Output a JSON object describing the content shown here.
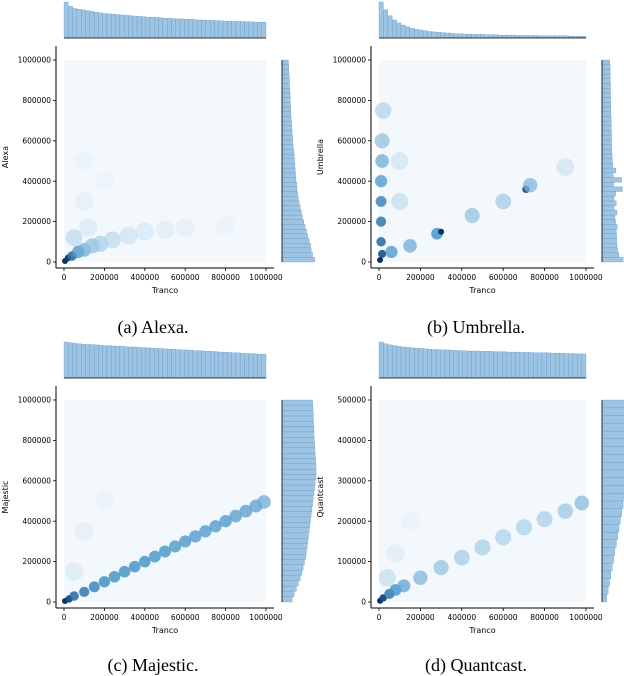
{
  "colors": {
    "accent": "#4c8ec9",
    "hist_fill": "#9ec4e3",
    "hist_edge": "#5b8fc0",
    "axis": "#000000"
  },
  "chart_data": [
    {
      "type": "heatmap",
      "subtype": "hexbin-jointplot",
      "caption": "(a) Alexa.",
      "xlabel": "Tranco",
      "ylabel": "Alexa",
      "xlim": [
        0,
        1000000
      ],
      "ylim": [
        0,
        1000000
      ],
      "xticks": [
        0,
        200000,
        400000,
        600000,
        800000,
        1000000
      ],
      "xtick_labels": [
        "0",
        "200000",
        "400000",
        "600000",
        "800000",
        "1000000"
      ],
      "yticks": [
        0,
        200000,
        400000,
        600000,
        800000,
        1000000
      ],
      "ytick_labels": [
        "0",
        "200000",
        "400000",
        "600000",
        "800000",
        "1000000"
      ],
      "density_points": [
        [
          5000,
          5000,
          1.0
        ],
        [
          20000,
          20000,
          0.95
        ],
        [
          40000,
          30000,
          0.75
        ],
        [
          70000,
          50000,
          0.55
        ],
        [
          100000,
          60000,
          0.45
        ],
        [
          140000,
          80000,
          0.35
        ],
        [
          180000,
          90000,
          0.28
        ],
        [
          240000,
          110000,
          0.22
        ],
        [
          320000,
          130000,
          0.16
        ],
        [
          400000,
          150000,
          0.13
        ],
        [
          500000,
          160000,
          0.1
        ],
        [
          600000,
          170000,
          0.08
        ],
        [
          800000,
          180000,
          0.06
        ],
        [
          50000,
          120000,
          0.22
        ],
        [
          120000,
          170000,
          0.12
        ],
        [
          100000,
          300000,
          0.08
        ],
        [
          100000,
          500000,
          0.06
        ],
        [
          200000,
          400000,
          0.05
        ]
      ],
      "marginal_x": [
        100,
        88,
        82,
        80,
        78,
        76,
        74,
        72,
        70,
        68,
        67,
        66,
        65,
        64,
        63,
        62,
        61,
        60,
        59,
        58,
        58,
        57,
        56,
        55,
        55,
        54,
        53,
        53,
        52,
        52,
        51,
        50,
        50,
        49,
        49,
        48,
        48,
        47,
        47,
        46,
        46,
        46,
        45,
        45,
        44,
        44,
        44
      ],
      "marginal_y": [
        96,
        90,
        86,
        84,
        80,
        76,
        72,
        68,
        64,
        60,
        57,
        54,
        51,
        48,
        46,
        44,
        43,
        41,
        40,
        39,
        38,
        37,
        36,
        35,
        33,
        32,
        31,
        30,
        29,
        28,
        27,
        26,
        26,
        25,
        24,
        24,
        23,
        22,
        22,
        21,
        20,
        20,
        19
      ]
    },
    {
      "type": "heatmap",
      "subtype": "hexbin-jointplot",
      "caption": "(b) Umbrella.",
      "xlabel": "Tranco",
      "ylabel": "Umbrella",
      "xlim": [
        0,
        1000000
      ],
      "ylim": [
        0,
        1000000
      ],
      "xticks": [
        0,
        200000,
        400000,
        600000,
        800000,
        1000000
      ],
      "xtick_labels": [
        "0",
        "200000",
        "400000",
        "600000",
        "800000",
        "1000000"
      ],
      "yticks": [
        0,
        200000,
        400000,
        600000,
        800000,
        1000000
      ],
      "ytick_labels": [
        "0",
        "200000",
        "400000",
        "600000",
        "800000",
        "1000000"
      ],
      "density_points": [
        [
          5000,
          10000,
          1.0
        ],
        [
          15000,
          40000,
          0.85
        ],
        [
          10000,
          100000,
          0.75
        ],
        [
          10000,
          200000,
          0.7
        ],
        [
          10000,
          300000,
          0.65
        ],
        [
          10000,
          400000,
          0.55
        ],
        [
          15000,
          500000,
          0.45
        ],
        [
          15000,
          600000,
          0.35
        ],
        [
          20000,
          750000,
          0.25
        ],
        [
          60000,
          50000,
          0.55
        ],
        [
          150000,
          80000,
          0.45
        ],
        [
          280000,
          140000,
          0.6
        ],
        [
          300000,
          150000,
          1.0
        ],
        [
          450000,
          230000,
          0.35
        ],
        [
          600000,
          300000,
          0.3
        ],
        [
          710000,
          360000,
          0.9
        ],
        [
          730000,
          380000,
          0.4
        ],
        [
          900000,
          470000,
          0.15
        ],
        [
          100000,
          300000,
          0.2
        ],
        [
          100000,
          500000,
          0.15
        ]
      ],
      "marginal_x": [
        100,
        78,
        62,
        50,
        42,
        36,
        31,
        27,
        24,
        22,
        20,
        18,
        17,
        16,
        15,
        14,
        13,
        12,
        12,
        11,
        11,
        10,
        10,
        10,
        9,
        9,
        9,
        8,
        8,
        8,
        8,
        7,
        7,
        7,
        7,
        7,
        6,
        6,
        6,
        6,
        6,
        6,
        6,
        5,
        5,
        5,
        5
      ],
      "marginal_y": [
        62,
        50,
        46,
        44,
        43,
        43,
        42,
        45,
        40,
        38,
        44,
        36,
        42,
        35,
        40,
        60,
        34,
        58,
        33,
        41,
        32,
        30,
        30,
        29,
        29,
        28,
        28,
        28,
        27,
        27,
        27,
        26,
        26,
        26,
        25,
        25,
        25,
        25,
        24,
        24,
        24,
        24,
        23
      ]
    },
    {
      "type": "heatmap",
      "subtype": "hexbin-jointplot",
      "caption": "(c) Majestic.",
      "xlabel": "Tranco",
      "ylabel": "Majestic",
      "xlim": [
        0,
        1000000
      ],
      "ylim": [
        0,
        1000000
      ],
      "xticks": [
        0,
        200000,
        400000,
        600000,
        800000,
        1000000
      ],
      "xtick_labels": [
        "0",
        "200000",
        "400000",
        "600000",
        "800000",
        "1000000"
      ],
      "yticks": [
        0,
        200000,
        400000,
        600000,
        800000,
        1000000
      ],
      "ytick_labels": [
        "0",
        "200000",
        "400000",
        "600000",
        "800000",
        "1000000"
      ],
      "density_points": [
        [
          5000,
          5000,
          1.0
        ],
        [
          25000,
          15000,
          0.9
        ],
        [
          50000,
          30000,
          0.75
        ],
        [
          100000,
          50000,
          0.7
        ],
        [
          150000,
          75000,
          0.65
        ],
        [
          200000,
          100000,
          0.62
        ],
        [
          250000,
          125000,
          0.6
        ],
        [
          300000,
          150000,
          0.6
        ],
        [
          350000,
          175000,
          0.6
        ],
        [
          400000,
          200000,
          0.6
        ],
        [
          450000,
          225000,
          0.58
        ],
        [
          500000,
          250000,
          0.58
        ],
        [
          550000,
          275000,
          0.56
        ],
        [
          600000,
          300000,
          0.56
        ],
        [
          650000,
          325000,
          0.55
        ],
        [
          700000,
          350000,
          0.55
        ],
        [
          750000,
          375000,
          0.55
        ],
        [
          800000,
          400000,
          0.55
        ],
        [
          850000,
          425000,
          0.52
        ],
        [
          900000,
          450000,
          0.52
        ],
        [
          950000,
          475000,
          0.5
        ],
        [
          990000,
          495000,
          0.45
        ],
        [
          50000,
          150000,
          0.12
        ],
        [
          100000,
          350000,
          0.08
        ],
        [
          200000,
          500000,
          0.06
        ]
      ],
      "marginal_x": [
        100,
        98,
        96,
        95,
        94,
        93,
        93,
        92,
        91,
        90,
        90,
        89,
        88,
        88,
        87,
        86,
        86,
        85,
        84,
        84,
        83,
        82,
        82,
        81,
        80,
        80,
        79,
        78,
        78,
        77,
        76,
        76,
        75,
        74,
        74,
        73,
        72,
        72,
        71,
        70,
        70,
        69,
        68,
        68,
        67,
        66,
        66
      ],
      "marginal_y": [
        30,
        36,
        42,
        48,
        54,
        58,
        62,
        66,
        70,
        72,
        74,
        76,
        78,
        80,
        82,
        84,
        86,
        88,
        90,
        92,
        94,
        96,
        98,
        100,
        100,
        100,
        99,
        98,
        97,
        96,
        95,
        94,
        94,
        93,
        92,
        92,
        91,
        90
      ]
    },
    {
      "type": "heatmap",
      "subtype": "hexbin-jointplot",
      "caption": "(d) Quantcast.",
      "xlabel": "Tranco",
      "ylabel": "Quantcast",
      "xlim": [
        0,
        1000000
      ],
      "ylim": [
        0,
        500000
      ],
      "xticks": [
        0,
        200000,
        400000,
        600000,
        800000,
        1000000
      ],
      "xtick_labels": [
        "0",
        "200000",
        "400000",
        "600000",
        "800000",
        "1000000"
      ],
      "yticks": [
        0,
        100000,
        200000,
        300000,
        400000,
        500000
      ],
      "ytick_labels": [
        "0",
        "100000",
        "200000",
        "300000",
        "400000",
        "500000"
      ],
      "density_points": [
        [
          5000,
          3000,
          1.0
        ],
        [
          20000,
          10000,
          0.9
        ],
        [
          50000,
          20000,
          0.7
        ],
        [
          80000,
          30000,
          0.6
        ],
        [
          120000,
          40000,
          0.5
        ],
        [
          200000,
          60000,
          0.4
        ],
        [
          300000,
          85000,
          0.34
        ],
        [
          400000,
          110000,
          0.3
        ],
        [
          500000,
          135000,
          0.28
        ],
        [
          600000,
          160000,
          0.27
        ],
        [
          700000,
          185000,
          0.27
        ],
        [
          800000,
          205000,
          0.28
        ],
        [
          900000,
          225000,
          0.32
        ],
        [
          980000,
          245000,
          0.38
        ],
        [
          40000,
          60000,
          0.2
        ],
        [
          80000,
          120000,
          0.1
        ],
        [
          150000,
          200000,
          0.06
        ]
      ],
      "marginal_x": [
        100,
        95,
        92,
        90,
        88,
        86,
        85,
        84,
        83,
        82,
        81,
        80,
        79,
        79,
        78,
        78,
        77,
        77,
        76,
        76,
        75,
        75,
        75,
        74,
        74,
        74,
        73,
        73,
        73,
        72,
        72,
        72,
        71,
        71,
        71,
        70,
        70,
        70,
        70,
        69,
        69,
        69,
        68,
        68,
        68,
        67,
        67
      ],
      "marginal_y": [
        14,
        18,
        22,
        26,
        30,
        34,
        38,
        42,
        46,
        50,
        54,
        58,
        62,
        66,
        70,
        74,
        78,
        82,
        86,
        90,
        94,
        97,
        100,
        100,
        100,
        99
      ]
    }
  ]
}
